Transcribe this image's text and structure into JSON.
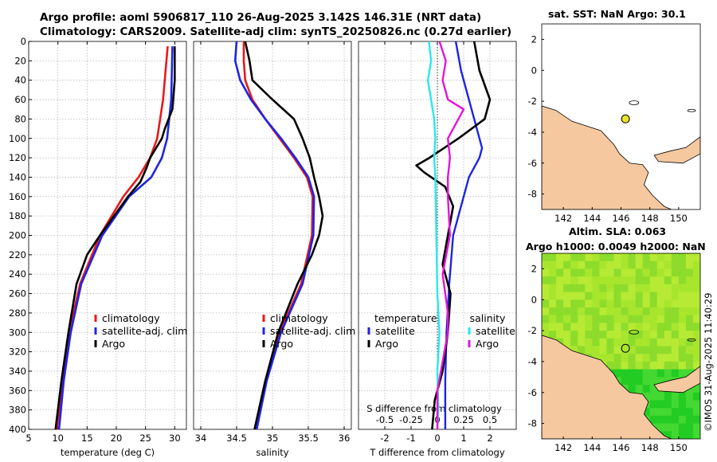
{
  "title_line1": "Argo profile: aoml 5906817_110 26-Aug-2025 3.142S 146.31E (NRT data)",
  "title_line2": "Climatology: CARS2009. Satellite-adj clim: synTS_20250826.nc (0.27d earlier)",
  "sst_title": "sat. SST: NaN Argo: 30.1",
  "sla_title1": "Altim. SLA: 0.063",
  "sla_title2": "Argo h1000: 0.0049 h2000: NaN",
  "credit": "©IMOS 31-Aug-2025 11:40:29",
  "colors": {
    "climatology": "#e8191c",
    "satellite": "#1d24e6",
    "argo": "#000000",
    "s_diff": "#28e8ee",
    "t_sat_diff": "#1d24e6",
    "t_argo_diff": "#000000",
    "s_argo_diff": "#e414d6",
    "land": "#f5c8a0",
    "float": "#e8e22a"
  },
  "chart_data": [
    {
      "type": "line",
      "xlabel": "temperature (deg C)",
      "ylabel": "",
      "xlim": [
        5,
        32
      ],
      "ylim": [
        400,
        0
      ],
      "x_ticks": [
        5,
        10,
        15,
        20,
        25,
        30
      ],
      "y_ticks": [
        0,
        20,
        40,
        60,
        80,
        100,
        120,
        140,
        160,
        180,
        200,
        220,
        240,
        260,
        280,
        300,
        320,
        340,
        360,
        380,
        400
      ],
      "legend": [
        "climatology",
        "satellite-adj. clim",
        "Argo"
      ],
      "legend_position": "center-right",
      "grid": true,
      "series": [
        {
          "name": "climatology",
          "depth": [
            5,
            60,
            100,
            120,
            140,
            160,
            200,
            250,
            300,
            350,
            400
          ],
          "values": [
            28.8,
            28.0,
            27.0,
            25.8,
            23.8,
            21.2,
            17.2,
            13.8,
            11.9,
            10.8,
            9.8
          ]
        },
        {
          "name": "satellite-adj. clim",
          "depth": [
            5,
            60,
            100,
            120,
            140,
            160,
            200,
            250,
            300,
            350,
            400
          ],
          "values": [
            29.6,
            29.4,
            28.7,
            27.8,
            26.0,
            22.2,
            17.6,
            14.0,
            12.2,
            11.0,
            10.2
          ]
        },
        {
          "name": "Argo",
          "depth": [
            5,
            40,
            70,
            90,
            100,
            120,
            130,
            145,
            160,
            200,
            220,
            250,
            300,
            350,
            400
          ],
          "values": [
            30.0,
            30.0,
            29.6,
            28.3,
            27.8,
            25.8,
            25.2,
            24.1,
            22.0,
            17.2,
            15.0,
            13.2,
            11.8,
            10.6,
            9.6
          ]
        }
      ]
    },
    {
      "type": "line",
      "xlabel": "salinity",
      "xlim": [
        33.9,
        36.1
      ],
      "ylim": [
        400,
        0
      ],
      "x_ticks": [
        34,
        34.5,
        35,
        35.5,
        36
      ],
      "x_tick_labels": [
        "34",
        "34.5",
        "35",
        "35.5",
        "36"
      ],
      "legend": [
        "climatology",
        "satellite-adj. clim",
        "Argo"
      ],
      "legend_position": "bottom-right",
      "grid": true,
      "series": [
        {
          "name": "climatology",
          "depth": [
            0,
            20,
            40,
            60,
            80,
            100,
            120,
            140,
            160,
            200,
            250,
            300,
            350,
            400
          ],
          "values": [
            34.6,
            34.6,
            34.62,
            34.72,
            34.9,
            35.1,
            35.3,
            35.48,
            35.56,
            35.55,
            35.4,
            35.1,
            34.9,
            34.75
          ]
        },
        {
          "name": "satellite-adj. clim",
          "depth": [
            0,
            20,
            40,
            60,
            80,
            100,
            120,
            140,
            160,
            200,
            250,
            300,
            350,
            400
          ],
          "values": [
            34.5,
            34.48,
            34.55,
            34.7,
            34.9,
            35.12,
            35.32,
            35.5,
            35.58,
            35.57,
            35.42,
            35.12,
            34.92,
            34.78
          ]
        },
        {
          "name": "Argo",
          "depth": [
            0,
            20,
            40,
            60,
            80,
            100,
            120,
            140,
            160,
            180,
            200,
            220,
            250,
            300,
            350,
            400
          ],
          "values": [
            34.62,
            34.68,
            34.72,
            35.0,
            35.3,
            35.42,
            35.52,
            35.58,
            35.65,
            35.7,
            35.65,
            35.55,
            35.35,
            35.08,
            34.9,
            34.75
          ]
        }
      ]
    },
    {
      "type": "line",
      "xlabel": "T difference from climatology",
      "top_axis_label": "S difference from climatology",
      "xlim": [
        -3,
        3
      ],
      "ylim": [
        400,
        0
      ],
      "x_ticks": [
        -2,
        -1,
        0,
        1,
        2
      ],
      "top_ticks": [
        -0.5,
        -0.25,
        0,
        0.25,
        0.5
      ],
      "top_tick_labels": [
        "-0.5",
        "-0.25",
        "0",
        "0.25",
        "0.5"
      ],
      "legend_t": [
        "temperature",
        "satellite",
        "Argo"
      ],
      "legend_s": [
        "salinity",
        "satellite",
        "Argo"
      ],
      "grid": true,
      "series": [
        {
          "name": "T satellite",
          "axis": "T",
          "depth": [
            0,
            30,
            60,
            90,
            110,
            120,
            140,
            160,
            200,
            250,
            300,
            350,
            400
          ],
          "values": [
            0.7,
            0.9,
            1.2,
            1.5,
            1.7,
            1.6,
            1.2,
            1.0,
            0.6,
            0.45,
            0.35,
            0.3,
            0.3
          ]
        },
        {
          "name": "T Argo",
          "axis": "T",
          "depth": [
            0,
            30,
            60,
            80,
            100,
            120,
            128,
            135,
            150,
            170,
            200,
            230,
            260,
            300,
            340,
            370,
            400
          ],
          "values": [
            1.4,
            1.6,
            2.0,
            1.8,
            0.8,
            -0.3,
            -0.8,
            -0.5,
            0.3,
            0.6,
            0.4,
            0.2,
            0.5,
            0.4,
            0.2,
            -0.1,
            -0.2
          ]
        },
        {
          "name": "S salinity-satellite",
          "axis": "S",
          "depth": [
            0,
            20,
            40,
            60,
            80,
            100,
            120,
            140,
            200,
            260,
            300,
            340,
            380,
            400
          ],
          "values": [
            -0.08,
            -0.06,
            -0.09,
            -0.06,
            -0.03,
            -0.02,
            -0.03,
            -0.02,
            -0.01,
            0.0,
            0.02,
            0.0,
            0.01,
            0.0
          ]
        },
        {
          "name": "S Argo",
          "axis": "S",
          "depth": [
            0,
            20,
            40,
            60,
            70,
            80,
            100,
            120,
            140,
            160,
            200,
            240,
            280,
            300,
            330,
            360,
            400
          ],
          "values": [
            0.02,
            0.08,
            0.05,
            0.1,
            0.25,
            0.2,
            0.1,
            0.12,
            0.1,
            0.1,
            0.12,
            0.05,
            0.1,
            0.1,
            0.05,
            0.0,
            0.0
          ]
        }
      ]
    },
    {
      "type": "heatmap",
      "title": "sat. SST: NaN Argo: 30.1",
      "xlim": [
        140.5,
        151.5
      ],
      "ylim": [
        -9,
        3
      ],
      "x_ticks": [
        142,
        144,
        146,
        148,
        150
      ],
      "y_ticks": [
        -8,
        -6,
        -4,
        -2,
        0,
        2
      ],
      "float_position": [
        146.31,
        -3.142
      ],
      "values": "NaN"
    },
    {
      "type": "heatmap",
      "title": "Altim. SLA: 0.063",
      "subtitle": "Argo h1000: 0.0049 h2000: NaN",
      "xlim": [
        140.5,
        151.5
      ],
      "ylim": [
        -9,
        3
      ],
      "x_ticks": [
        142,
        144,
        146,
        148,
        150
      ],
      "y_ticks": [
        -8,
        -6,
        -4,
        -2,
        0,
        2
      ],
      "float_position": [
        146.31,
        -3.142
      ]
    }
  ]
}
